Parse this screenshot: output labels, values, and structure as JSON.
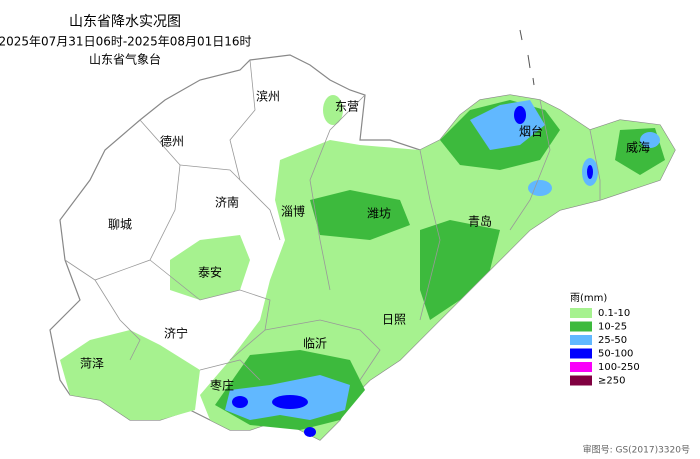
{
  "header": {
    "title": "山东省降水实况图",
    "period": "2025年07月31日06时-2025年08月01日16时",
    "issuer": "山东省气象台"
  },
  "cities": [
    "滨州",
    "东营",
    "德州",
    "烟台",
    "威海",
    "济南",
    "淄博",
    "潍坊",
    "青岛",
    "聊城",
    "泰安",
    "济宁",
    "日照",
    "临沂",
    "菏泽",
    "枣庄"
  ],
  "legend": {
    "title": "雨(mm)",
    "items": [
      {
        "label": "0.1-10",
        "color": "#a6f28f"
      },
      {
        "label": "10-25",
        "color": "#3dba3d"
      },
      {
        "label": "25-50",
        "color": "#61b8ff"
      },
      {
        "label": "50-100",
        "color": "#0000fe"
      },
      {
        "label": "100-250",
        "color": "#fa00fa"
      },
      {
        "label": "≥250",
        "color": "#800040"
      }
    ]
  },
  "footer": {
    "approval": "审图号: GS(2017)3320号"
  }
}
